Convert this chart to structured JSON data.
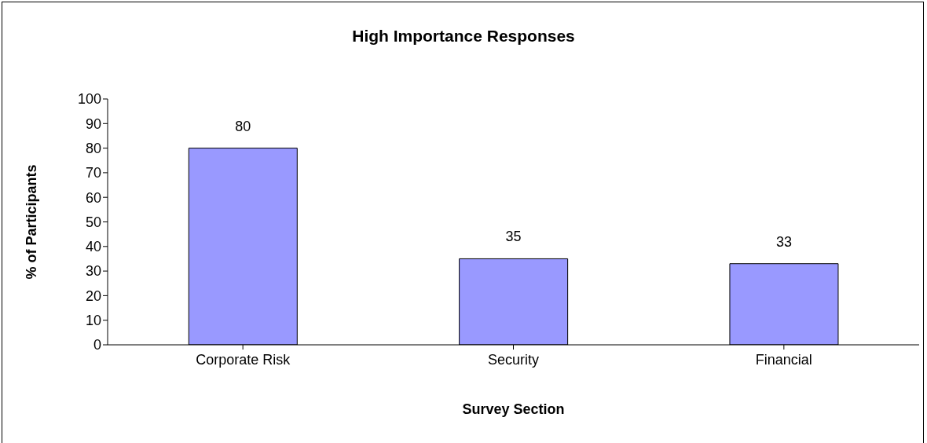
{
  "chart_data": {
    "type": "bar",
    "title": "High Importance Responses",
    "xlabel": "Survey Section",
    "ylabel": "% of Participants",
    "categories": [
      "Corporate Risk",
      "Security",
      "Financial"
    ],
    "values": [
      80,
      35,
      33
    ],
    "color": "#9999ff",
    "ylim": [
      0,
      100
    ],
    "yticks": [
      0,
      10,
      20,
      30,
      40,
      50,
      60,
      70,
      80,
      90,
      100
    ],
    "data_labels": true
  }
}
